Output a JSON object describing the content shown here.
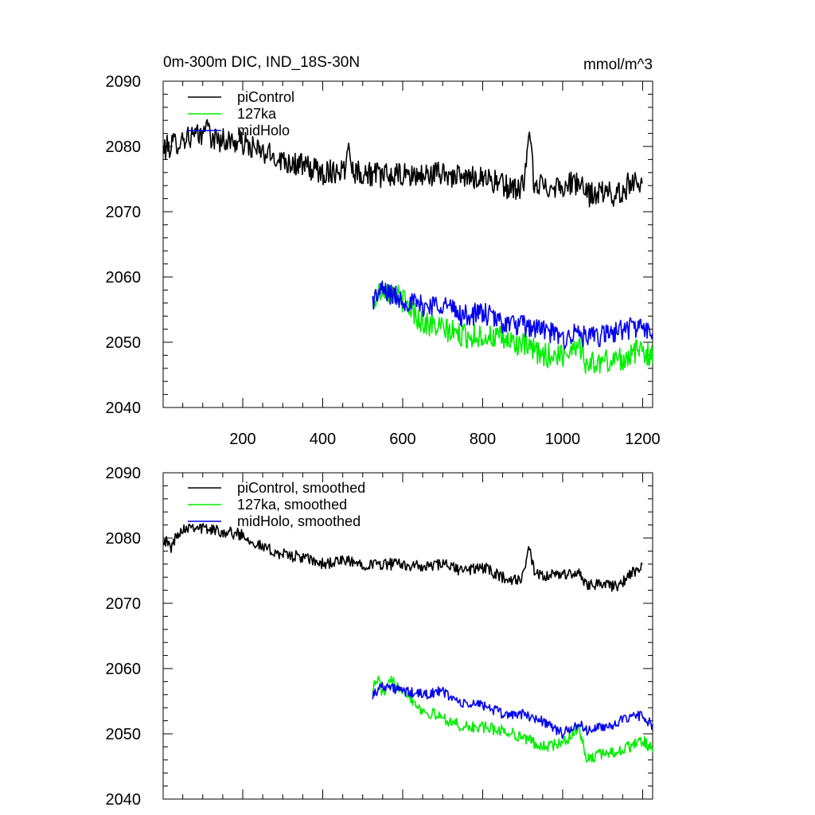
{
  "title": "0m-300m DIC, IND_18S-30N",
  "units": "mmol/m^3",
  "colors": {
    "piControl": "#000000",
    "127ka": "#00ee00",
    "midHolo": "#0000ee"
  },
  "chart_data": [
    {
      "type": "line",
      "name": "raw",
      "title": "0m-300m DIC, IND_18S-30N",
      "units_label": "mmol/m^3",
      "xlim": [
        1,
        1225
      ],
      "ylim": [
        2040,
        2090
      ],
      "yticks": [
        2040,
        2050,
        2060,
        2070,
        2080,
        2090
      ],
      "ytick_labels": [
        "2040",
        "2050",
        "2060",
        "2070",
        "2080",
        "2090"
      ],
      "xticks": [
        200,
        400,
        600,
        800,
        1000,
        1200
      ],
      "xtick_labels": [
        "200",
        "400",
        "600",
        "800",
        "1000",
        "1200"
      ],
      "legend": [
        "piControl",
        "127ka",
        "midHolo"
      ],
      "series": [
        {
          "name": "piControl",
          "color": "#000000",
          "x_start": 1,
          "x_end": 1200,
          "noise": 1.9,
          "anchors": [
            [
              1,
              2079.5
            ],
            [
              60,
              2081.5
            ],
            [
              100,
              2081.5
            ],
            [
              150,
              2081
            ],
            [
              200,
              2080.5
            ],
            [
              250,
              2079
            ],
            [
              300,
              2078
            ],
            [
              350,
              2077
            ],
            [
              400,
              2076
            ],
            [
              450,
              2076.5
            ],
            [
              500,
              2076
            ],
            [
              550,
              2075.5
            ],
            [
              600,
              2075.5
            ],
            [
              650,
              2075.5
            ],
            [
              700,
              2076
            ],
            [
              750,
              2075
            ],
            [
              800,
              2075.5
            ],
            [
              850,
              2074
            ],
            [
              880,
              2073.5
            ],
            [
              900,
              2074
            ],
            [
              915,
              2078
            ],
            [
              930,
              2074
            ],
            [
              950,
              2074
            ],
            [
              1000,
              2074
            ],
            [
              1040,
              2074.5
            ],
            [
              1060,
              2072.5
            ],
            [
              1100,
              2073
            ],
            [
              1140,
              2072.5
            ],
            [
              1170,
              2074.5
            ],
            [
              1200,
              2075
            ]
          ],
          "spikes": [
            [
              917,
              2082.2
            ],
            [
              465,
              2080.5
            ],
            [
              110,
              2084.2
            ]
          ]
        },
        {
          "name": "127ka",
          "color": "#00ee00",
          "x_start": 525,
          "x_end": 1225,
          "noise": 1.9,
          "anchors": [
            [
              525,
              2056
            ],
            [
              550,
              2058.5
            ],
            [
              600,
              2056.5
            ],
            [
              650,
              2053
            ],
            [
              700,
              2052
            ],
            [
              750,
              2051
            ],
            [
              800,
              2051
            ],
            [
              850,
              2050.5
            ],
            [
              900,
              2049.5
            ],
            [
              950,
              2048
            ],
            [
              1000,
              2048
            ],
            [
              1040,
              2050
            ],
            [
              1060,
              2046.5
            ],
            [
              1100,
              2047
            ],
            [
              1150,
              2047.5
            ],
            [
              1200,
              2049
            ],
            [
              1225,
              2047.5
            ]
          ],
          "spikes": []
        },
        {
          "name": "midHolo",
          "color": "#0000ee",
          "x_start": 525,
          "x_end": 1225,
          "noise": 1.7,
          "anchors": [
            [
              525,
              2056.5
            ],
            [
              550,
              2058
            ],
            [
              600,
              2056.5
            ],
            [
              650,
              2055.5
            ],
            [
              700,
              2056
            ],
            [
              750,
              2054
            ],
            [
              800,
              2054.5
            ],
            [
              850,
              2053
            ],
            [
              900,
              2052.5
            ],
            [
              950,
              2052
            ],
            [
              1000,
              2050.5
            ],
            [
              1040,
              2051.5
            ],
            [
              1060,
              2050.5
            ],
            [
              1100,
              2051
            ],
            [
              1150,
              2052
            ],
            [
              1200,
              2052.5
            ],
            [
              1225,
              2050.5
            ]
          ],
          "spikes": []
        }
      ]
    },
    {
      "type": "line",
      "name": "smoothed",
      "xlim": [
        1,
        1225
      ],
      "ylim": [
        2040,
        2090
      ],
      "yticks": [
        2040,
        2050,
        2060,
        2070,
        2080,
        2090
      ],
      "ytick_labels": [
        "2040",
        "2050",
        "2060",
        "2070",
        "2080",
        "2090"
      ],
      "xticks": [
        200,
        400,
        600,
        800,
        1000,
        1200
      ],
      "xtick_labels": [],
      "legend": [
        "piControl, smoothed",
        "127ka, smoothed",
        "midHolo, smoothed"
      ],
      "series": [
        {
          "name": "piControl, smoothed",
          "color": "#000000",
          "x_start": 1,
          "x_end": 1200,
          "noise": 0.9,
          "anchors": [
            [
              1,
              2080
            ],
            [
              20,
              2078.5
            ],
            [
              40,
              2081
            ],
            [
              70,
              2082
            ],
            [
              100,
              2081.5
            ],
            [
              150,
              2081
            ],
            [
              200,
              2080.5
            ],
            [
              250,
              2078.5
            ],
            [
              300,
              2077.5
            ],
            [
              350,
              2077
            ],
            [
              400,
              2076
            ],
            [
              450,
              2076.5
            ],
            [
              500,
              2076
            ],
            [
              550,
              2076
            ],
            [
              600,
              2076
            ],
            [
              650,
              2075.5
            ],
            [
              700,
              2076
            ],
            [
              750,
              2075
            ],
            [
              800,
              2075.5
            ],
            [
              850,
              2074
            ],
            [
              880,
              2073.5
            ],
            [
              900,
              2074
            ],
            [
              915,
              2078.5
            ],
            [
              930,
              2074.5
            ],
            [
              950,
              2074
            ],
            [
              1000,
              2074.5
            ],
            [
              1040,
              2074.5
            ],
            [
              1060,
              2073
            ],
            [
              1100,
              2073
            ],
            [
              1140,
              2072.5
            ],
            [
              1170,
              2074.5
            ],
            [
              1200,
              2075.5
            ]
          ],
          "spikes": []
        },
        {
          "name": "127ka, smoothed",
          "color": "#00ee00",
          "x_start": 525,
          "x_end": 1225,
          "noise": 0.9,
          "anchors": [
            [
              525,
              2057
            ],
            [
              540,
              2058.5
            ],
            [
              550,
              2056
            ],
            [
              570,
              2058
            ],
            [
              600,
              2057
            ],
            [
              650,
              2053.5
            ],
            [
              700,
              2052.5
            ],
            [
              750,
              2051
            ],
            [
              800,
              2051
            ],
            [
              850,
              2050.5
            ],
            [
              900,
              2049.5
            ],
            [
              950,
              2048
            ],
            [
              1000,
              2048.5
            ],
            [
              1040,
              2051
            ],
            [
              1060,
              2046
            ],
            [
              1100,
              2047
            ],
            [
              1150,
              2047.5
            ],
            [
              1200,
              2049
            ],
            [
              1225,
              2047.5
            ]
          ],
          "spikes": []
        },
        {
          "name": "midHolo, smoothed",
          "color": "#0000ee",
          "x_start": 525,
          "x_end": 1225,
          "noise": 0.8,
          "anchors": [
            [
              525,
              2056
            ],
            [
              550,
              2057.5
            ],
            [
              600,
              2056.5
            ],
            [
              650,
              2056
            ],
            [
              700,
              2056.5
            ],
            [
              750,
              2054.5
            ],
            [
              800,
              2054.5
            ],
            [
              850,
              2053
            ],
            [
              900,
              2053
            ],
            [
              950,
              2052
            ],
            [
              1000,
              2050
            ],
            [
              1040,
              2051.5
            ],
            [
              1060,
              2050.5
            ],
            [
              1100,
              2051
            ],
            [
              1150,
              2052
            ],
            [
              1200,
              2053
            ],
            [
              1225,
              2051
            ]
          ],
          "spikes": []
        }
      ]
    }
  ]
}
